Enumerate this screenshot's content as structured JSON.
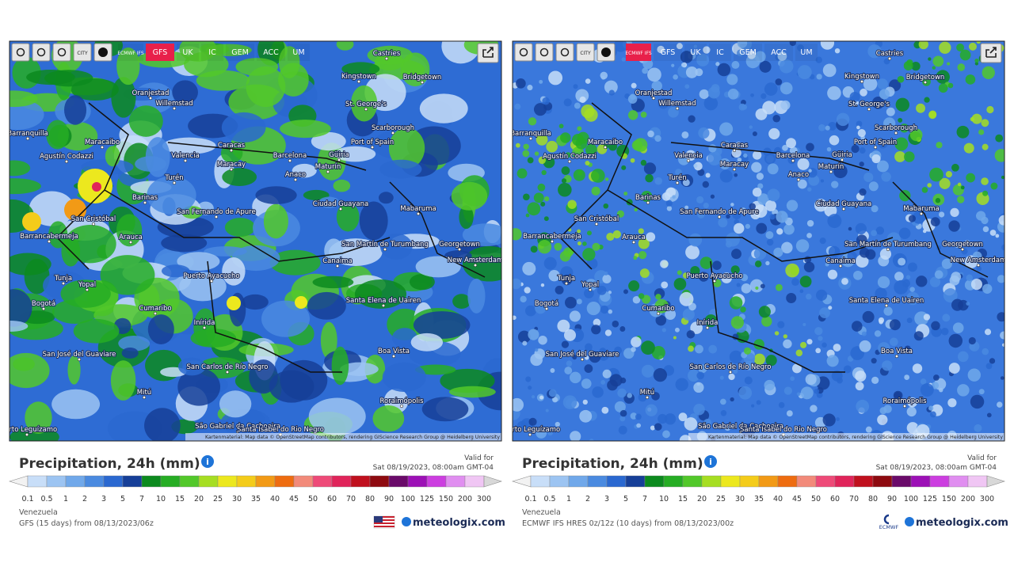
{
  "map_labels": [
    "Castries",
    "Kingstown",
    "Bridgetown",
    "Oranjestad",
    "Willemstad",
    "St. George's",
    "Scarborough",
    "Barranquilla",
    "Maracaibo",
    "Caracas",
    "Port of Spain",
    "Agustín Codazzi",
    "Valencia",
    "Barcelona",
    "Güiria",
    "Maracay",
    "Maturín",
    "Turén",
    "Anaco",
    "Barinas",
    "San Cristóbal",
    "San Fernando de Apure",
    "Ciudad Guayana",
    "Mabaruma",
    "Arauca",
    "Barrancabermeja",
    "San Martín de Turumbang",
    "Georgetown",
    "New Amsterdam",
    "Canaima",
    "Tunja",
    "Yopal",
    "Puerto Ayacucho",
    "Bogotá",
    "Santa Elena de Uairen",
    "Cumaribo",
    "Inírida",
    "San José del Guaviare",
    "Boa Vista",
    "San Carlos de Río Negro",
    "Mitú",
    "Roraimópolis",
    "Puerto Leguízamo",
    "São Gabriel da Cachoeira",
    "Santa Isabel do Rio Negro"
  ],
  "legend": {
    "ticks": [
      0.1,
      0.5,
      1,
      2,
      3,
      5,
      7,
      10,
      15,
      20,
      25,
      30,
      35,
      40,
      45,
      50,
      60,
      70,
      80,
      90,
      100,
      125,
      150,
      200,
      300
    ],
    "colors": [
      "#f2f2f2",
      "#c8def8",
      "#9cc4f2",
      "#70a8ea",
      "#4a8ae0",
      "#2a68d0",
      "#163f98",
      "#0c8a1e",
      "#26ad24",
      "#52c82a",
      "#a6de22",
      "#ece81e",
      "#f4cc1a",
      "#f29a16",
      "#ee6c10",
      "#f28a7a",
      "#ee4a78",
      "#e0245a",
      "#c0101e",
      "#8e0a10",
      "#6a0a6a",
      "#9c10b6",
      "#cc3ee0",
      "#e08ef0",
      "#f0c6f4",
      "#d8d8d8"
    ]
  },
  "panels": [
    {
      "toolbar": {
        "icon_label": "CITY",
        "models": [
          "ECMWF IFS",
          "GFS",
          "UK",
          "IC",
          "GEM",
          "ACC",
          "UM"
        ],
        "active": "GFS"
      },
      "attribution": "Kartenmaterial: Map data © OpenStreetMap contributors, rendering GIScience Research Group @ Heidelberg University",
      "title": "Precipitation, 24h (mm)",
      "valid_label": "Valid for",
      "valid_time": "Sat 08/19/2023, 08:00am GMT-04",
      "region": "Venezuela",
      "model_run": "GFS (15 days) from 08/13/2023/06z",
      "brand": "meteologix.com"
    },
    {
      "toolbar": {
        "icon_label": "CITY",
        "models": [
          "ECMWF IFS",
          "GFS",
          "UK",
          "IC",
          "GEM",
          "ACC",
          "UM"
        ],
        "active": "ECMWF IFS"
      },
      "attribution": "Kartenmaterial: Map data © OpenStreetMap contributors, rendering GIScience Research Group @ Heidelberg University",
      "title": "Precipitation, 24h (mm)",
      "valid_label": "Valid for",
      "valid_time": "Sat 08/19/2023, 08:00am GMT-04",
      "region": "Venezuela",
      "model_run": "ECMWF IFS HRES 0z/12z (10 days) from 08/13/2023/00z",
      "brand": "meteologix.com",
      "logo_label": "ECMWF"
    }
  ]
}
